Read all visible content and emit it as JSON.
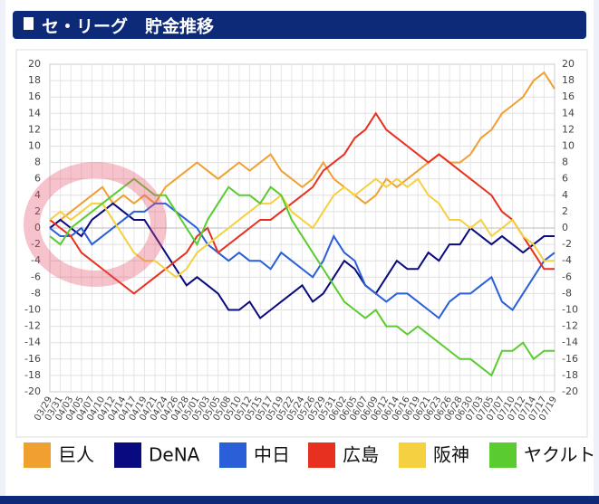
{
  "header": {
    "title": "セ・リーグ　貯金推移"
  },
  "chart_data": {
    "type": "line",
    "categories": [
      "03/29",
      "03/31",
      "04/03",
      "04/05",
      "04/07",
      "04/10",
      "04/12",
      "04/14",
      "04/17",
      "04/19",
      "04/21",
      "04/24",
      "04/26",
      "04/28",
      "05/01",
      "05/03",
      "05/05",
      "05/08",
      "05/10",
      "05/12",
      "05/15",
      "05/17",
      "05/19",
      "05/22",
      "05/24",
      "05/26",
      "05/29",
      "05/31",
      "06/02",
      "06/05",
      "06/07",
      "06/09",
      "06/12",
      "06/14",
      "06/16",
      "06/19",
      "06/21",
      "06/23",
      "06/26",
      "06/28",
      "06/30",
      "07/03",
      "07/05",
      "07/07",
      "07/10",
      "07/12",
      "07/14",
      "07/17",
      "07/19"
    ],
    "series": [
      {
        "name": "巨人",
        "color": "#f0a030",
        "values": [
          0,
          1,
          2,
          3,
          4,
          5,
          3,
          4,
          3,
          4,
          3,
          5,
          6,
          7,
          8,
          7,
          6,
          7,
          8,
          7,
          8,
          9,
          7,
          6,
          5,
          6,
          8,
          6,
          5,
          4,
          3,
          4,
          6,
          5,
          6,
          7,
          8,
          9,
          8,
          8,
          9,
          11,
          12,
          14,
          15,
          16,
          18,
          19,
          17
        ]
      },
      {
        "name": "DeNA",
        "color": "#0a0a80",
        "values": [
          0,
          1,
          0,
          -1,
          1,
          2,
          3,
          2,
          1,
          1,
          -1,
          -3,
          -5,
          -7,
          -6,
          -7,
          -8,
          -10,
          -10,
          -9,
          -11,
          -10,
          -9,
          -8,
          -7,
          -9,
          -8,
          -6,
          -4,
          -5,
          -7,
          -8,
          -6,
          -4,
          -5,
          -5,
          -3,
          -4,
          -2,
          -2,
          0,
          -1,
          -2,
          -1,
          -2,
          -3,
          -2,
          -1,
          -1
        ]
      },
      {
        "name": "中日",
        "color": "#2a5fd8",
        "values": [
          0,
          -1,
          -1,
          0,
          -2,
          -1,
          0,
          1,
          2,
          2,
          3,
          3,
          2,
          1,
          0,
          -2,
          -3,
          -4,
          -3,
          -4,
          -4,
          -5,
          -3,
          -4,
          -5,
          -6,
          -4,
          -1,
          -3,
          -4,
          -7,
          -8,
          -9,
          -8,
          -8,
          -9,
          -10,
          -11,
          -9,
          -8,
          -8,
          -7,
          -6,
          -9,
          -10,
          -8,
          -6,
          -4,
          -3
        ]
      },
      {
        "name": "広島",
        "color": "#e83020",
        "values": [
          1,
          0,
          -1,
          -3,
          -4,
          -5,
          -6,
          -7,
          -8,
          -7,
          -6,
          -5,
          -4,
          -3,
          -1,
          0,
          -3,
          -2,
          -1,
          0,
          1,
          1,
          2,
          3,
          4,
          5,
          7,
          8,
          9,
          11,
          12,
          14,
          12,
          11,
          10,
          9,
          8,
          9,
          8,
          7,
          6,
          5,
          4,
          2,
          1,
          -1,
          -3,
          -5,
          -5
        ]
      },
      {
        "name": "阪神",
        "color": "#f5d040",
        "values": [
          1,
          2,
          1,
          2,
          3,
          3,
          1,
          -1,
          -3,
          -4,
          -4,
          -5,
          -6,
          -5,
          -3,
          -2,
          -1,
          0,
          1,
          2,
          3,
          3,
          4,
          2,
          1,
          0,
          2,
          4,
          5,
          4,
          5,
          6,
          5,
          6,
          5,
          6,
          4,
          3,
          1,
          1,
          0,
          1,
          -1,
          0,
          1,
          -1,
          -2,
          -4,
          -4
        ]
      },
      {
        "name": "ヤクルト",
        "color": "#5bcc30",
        "values": [
          -1,
          -2,
          0,
          1,
          2,
          3,
          4,
          5,
          6,
          5,
          4,
          4,
          2,
          0,
          -2,
          1,
          3,
          5,
          4,
          4,
          3,
          5,
          4,
          1,
          -1,
          -3,
          -5,
          -7,
          -9,
          -10,
          -11,
          -10,
          -12,
          -12,
          -13,
          -12,
          -13,
          -14,
          -15,
          -16,
          -16,
          -17,
          -18,
          -15,
          -15,
          -14,
          -16,
          -15,
          -15
        ]
      }
    ],
    "ylim": [
      -20,
      20
    ],
    "yticks": [
      -20,
      -18,
      -16,
      -14,
      -12,
      -10,
      -8,
      -6,
      -4,
      -2,
      0,
      2,
      4,
      6,
      8,
      10,
      12,
      14,
      16,
      18,
      20
    ],
    "grid": true
  }
}
